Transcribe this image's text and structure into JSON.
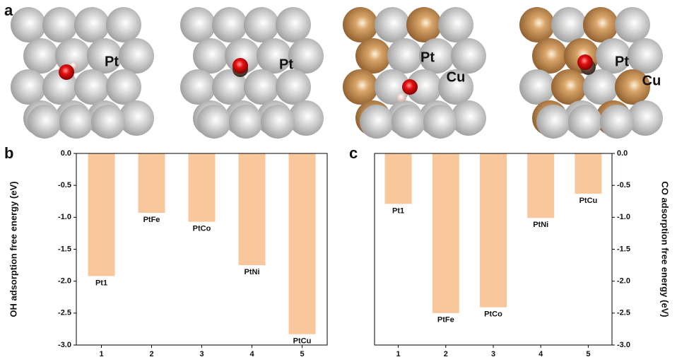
{
  "panels": {
    "a": "a",
    "b": "b",
    "c": "c"
  },
  "atom_labels": [
    "Pt",
    "Pt",
    "Pt",
    "Cu",
    "Pt",
    "Cu"
  ],
  "chart_data": [
    {
      "type": "bar",
      "ylabel": "OH adsorption free energy (eV)",
      "yaxis_position": "left",
      "categories": [
        "1",
        "2",
        "3",
        "4",
        "5"
      ],
      "values": [
        -1.92,
        -0.93,
        -1.07,
        -1.75,
        -2.83
      ],
      "labels": [
        "Pt1",
        "PtFe",
        "PtCo",
        "PtNi",
        "PtCu"
      ],
      "color": "#f8c89c",
      "ylim": [
        -3,
        0
      ],
      "yticks": [
        {
          "value": 0,
          "label": "0.0"
        },
        {
          "value": -0.5,
          "label": "-0.5"
        },
        {
          "value": -1,
          "label": "-1.0"
        },
        {
          "value": -1.5,
          "label": "-1.5"
        },
        {
          "value": -2,
          "label": "-2.0"
        },
        {
          "value": -2.5,
          "label": "-2.5"
        },
        {
          "value": -3,
          "label": "-3.0"
        }
      ]
    },
    {
      "type": "bar",
      "ylabel": "CO adsorption free energy (eV)",
      "yaxis_position": "right",
      "categories": [
        "1",
        "2",
        "3",
        "4",
        "5"
      ],
      "values": [
        -0.79,
        -2.5,
        -2.41,
        -1.01,
        -0.63
      ],
      "labels": [
        "Pt1",
        "PtFe",
        "PtCo",
        "PtNi",
        "PtCu"
      ],
      "color": "#f8c89c",
      "ylim": [
        -3,
        0
      ],
      "yticks": [
        {
          "value": 0,
          "label": "0.0"
        },
        {
          "value": -0.5,
          "label": "-0.5"
        },
        {
          "value": -1,
          "label": "-1.0"
        },
        {
          "value": -1.5,
          "label": "-1.5"
        },
        {
          "value": -2,
          "label": "-2.0"
        },
        {
          "value": -2.5,
          "label": "-2.5"
        },
        {
          "value": -3,
          "label": "-3.0"
        }
      ]
    }
  ]
}
